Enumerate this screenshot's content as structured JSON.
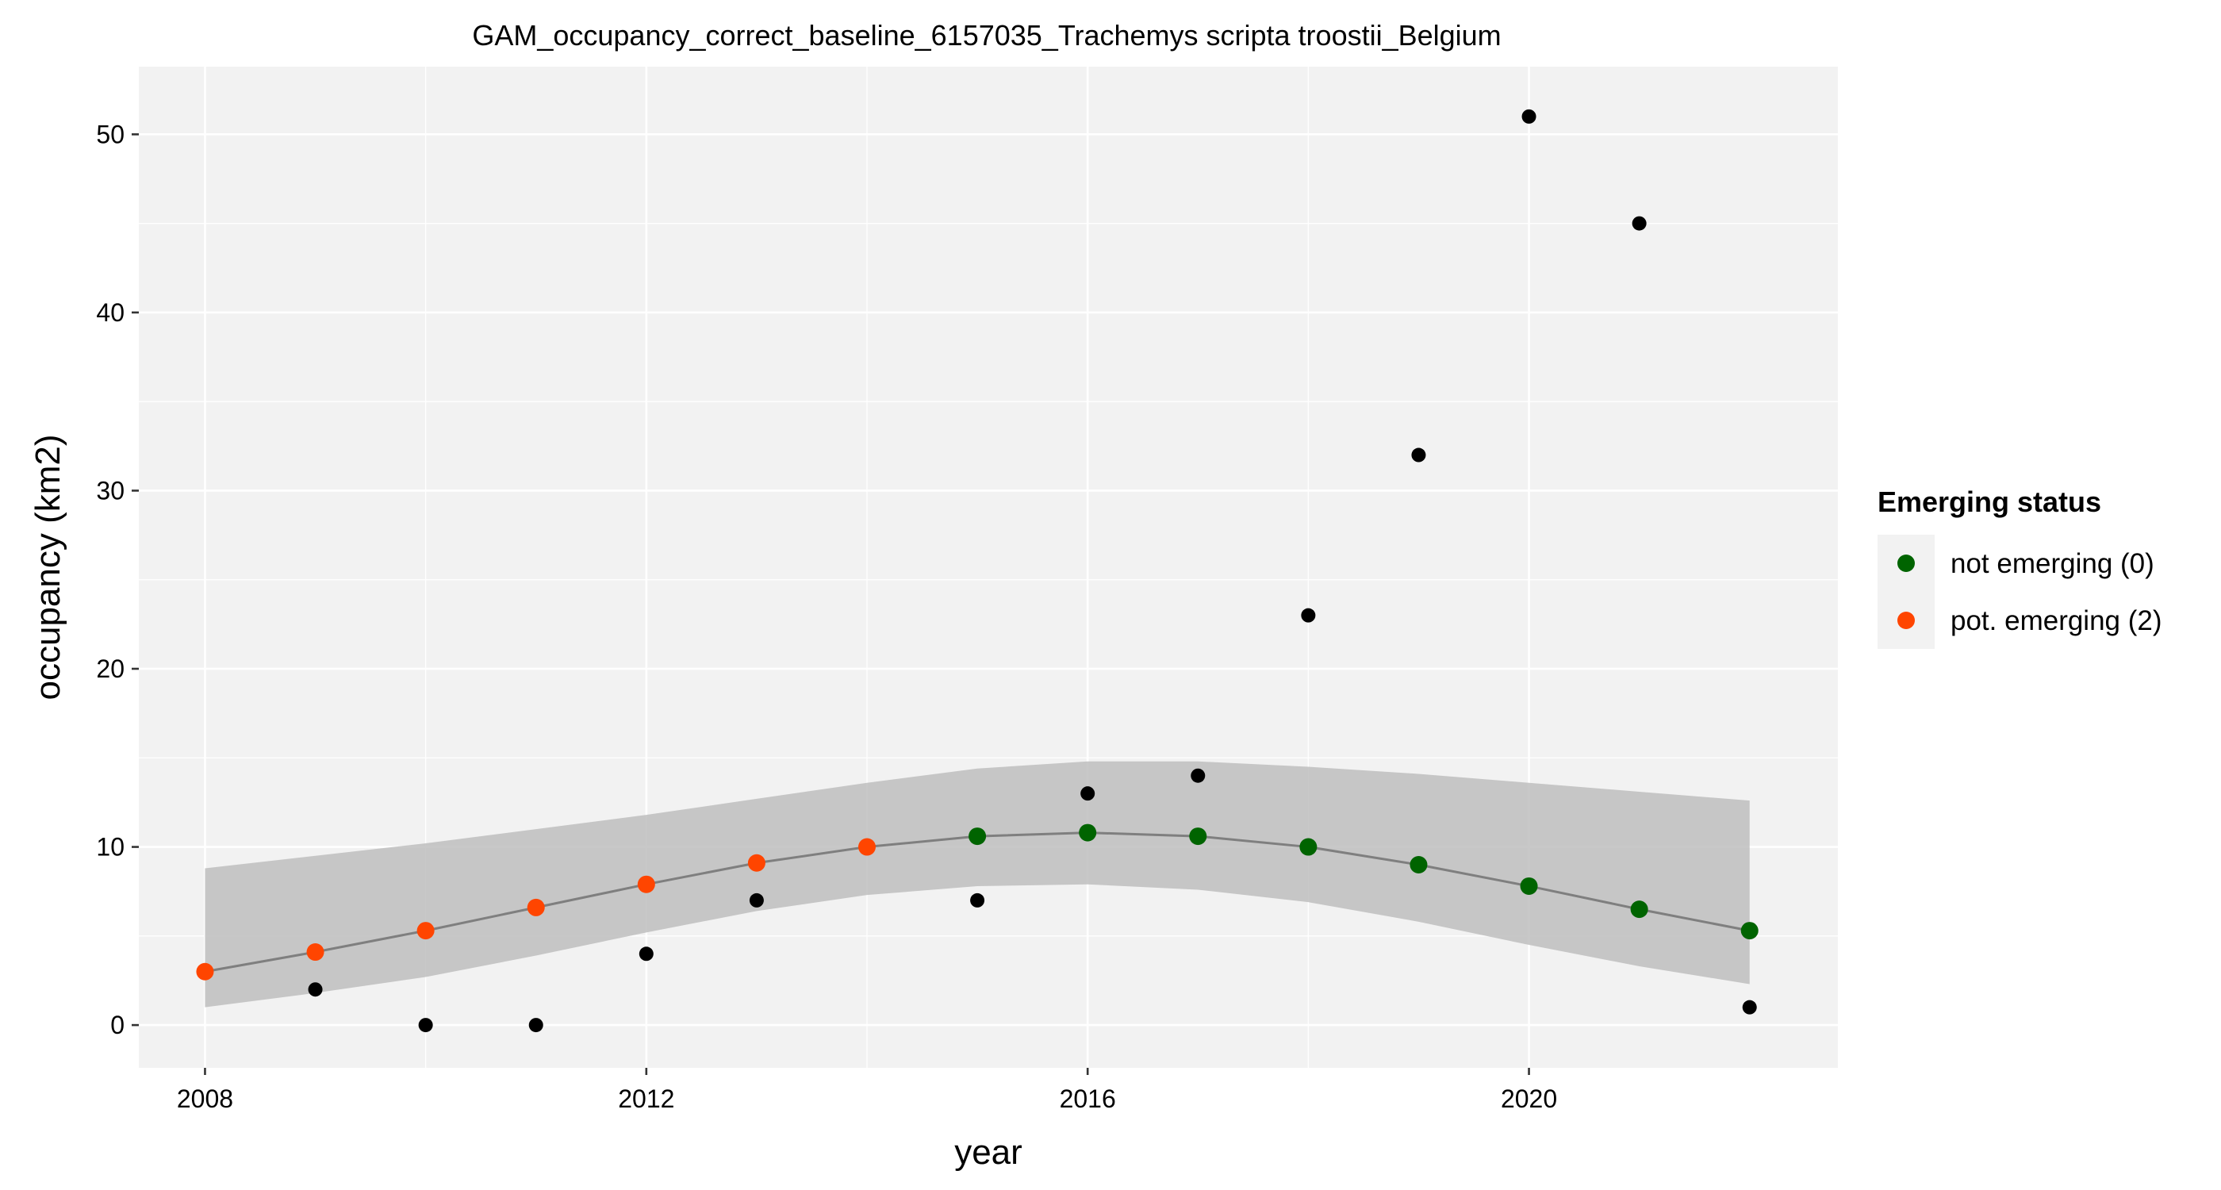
{
  "chart_data": {
    "type": "scatter",
    "title": "GAM_occupancy_correct_baseline_6157035_Trachemys scripta troostii_Belgium",
    "xlabel": "year",
    "ylabel": "occupancy (km2)",
    "xlim": [
      2007.4,
      2022.8
    ],
    "ylim": [
      -2.4,
      53.8
    ],
    "x_ticks": [
      2008,
      2012,
      2016,
      2020
    ],
    "y_ticks": [
      0,
      10,
      20,
      30,
      40,
      50
    ],
    "grid": true,
    "background_color": "#f2f2f2",
    "observed": {
      "color": "#000000",
      "points": [
        {
          "x": 2009,
          "y": 2
        },
        {
          "x": 2010,
          "y": 0
        },
        {
          "x": 2011,
          "y": 0
        },
        {
          "x": 2012,
          "y": 4
        },
        {
          "x": 2013,
          "y": 7
        },
        {
          "x": 2015,
          "y": 7
        },
        {
          "x": 2016,
          "y": 13
        },
        {
          "x": 2017,
          "y": 14
        },
        {
          "x": 2018,
          "y": 23
        },
        {
          "x": 2019,
          "y": 32
        },
        {
          "x": 2020,
          "y": 51
        },
        {
          "x": 2021,
          "y": 45
        },
        {
          "x": 2022,
          "y": 1
        }
      ]
    },
    "fit": {
      "line_color": "#7f7f7f",
      "ribbon_color": "#bebebe",
      "points": [
        {
          "x": 2008,
          "y": 3.0,
          "lower": 1.0,
          "upper": 8.8,
          "status": 2
        },
        {
          "x": 2009,
          "y": 4.1,
          "lower": 1.8,
          "upper": 9.5,
          "status": 2
        },
        {
          "x": 2010,
          "y": 5.3,
          "lower": 2.7,
          "upper": 10.2,
          "status": 2
        },
        {
          "x": 2011,
          "y": 6.6,
          "lower": 3.9,
          "upper": 11.0,
          "status": 2
        },
        {
          "x": 2012,
          "y": 7.9,
          "lower": 5.2,
          "upper": 11.8,
          "status": 2
        },
        {
          "x": 2013,
          "y": 9.1,
          "lower": 6.4,
          "upper": 12.7,
          "status": 2
        },
        {
          "x": 2014,
          "y": 10.0,
          "lower": 7.3,
          "upper": 13.6,
          "status": 2
        },
        {
          "x": 2015,
          "y": 10.6,
          "lower": 7.8,
          "upper": 14.4,
          "status": 0
        },
        {
          "x": 2016,
          "y": 10.8,
          "lower": 7.9,
          "upper": 14.8,
          "status": 0
        },
        {
          "x": 2017,
          "y": 10.6,
          "lower": 7.6,
          "upper": 14.8,
          "status": 0
        },
        {
          "x": 2018,
          "y": 10.0,
          "lower": 6.9,
          "upper": 14.5,
          "status": 0
        },
        {
          "x": 2019,
          "y": 9.0,
          "lower": 5.8,
          "upper": 14.1,
          "status": 0
        },
        {
          "x": 2020,
          "y": 7.8,
          "lower": 4.5,
          "upper": 13.6,
          "status": 0
        },
        {
          "x": 2021,
          "y": 6.5,
          "lower": 3.3,
          "upper": 13.1,
          "status": 0
        },
        {
          "x": 2022,
          "y": 5.3,
          "lower": 2.3,
          "upper": 12.6,
          "status": 0
        }
      ]
    },
    "legend": {
      "title": "Emerging status",
      "position": "right",
      "entries": [
        {
          "status": 0,
          "label": "not emerging (0)",
          "color": "#006400"
        },
        {
          "status": 2,
          "label": "pot. emerging (2)",
          "color": "#ff4500"
        }
      ]
    }
  }
}
